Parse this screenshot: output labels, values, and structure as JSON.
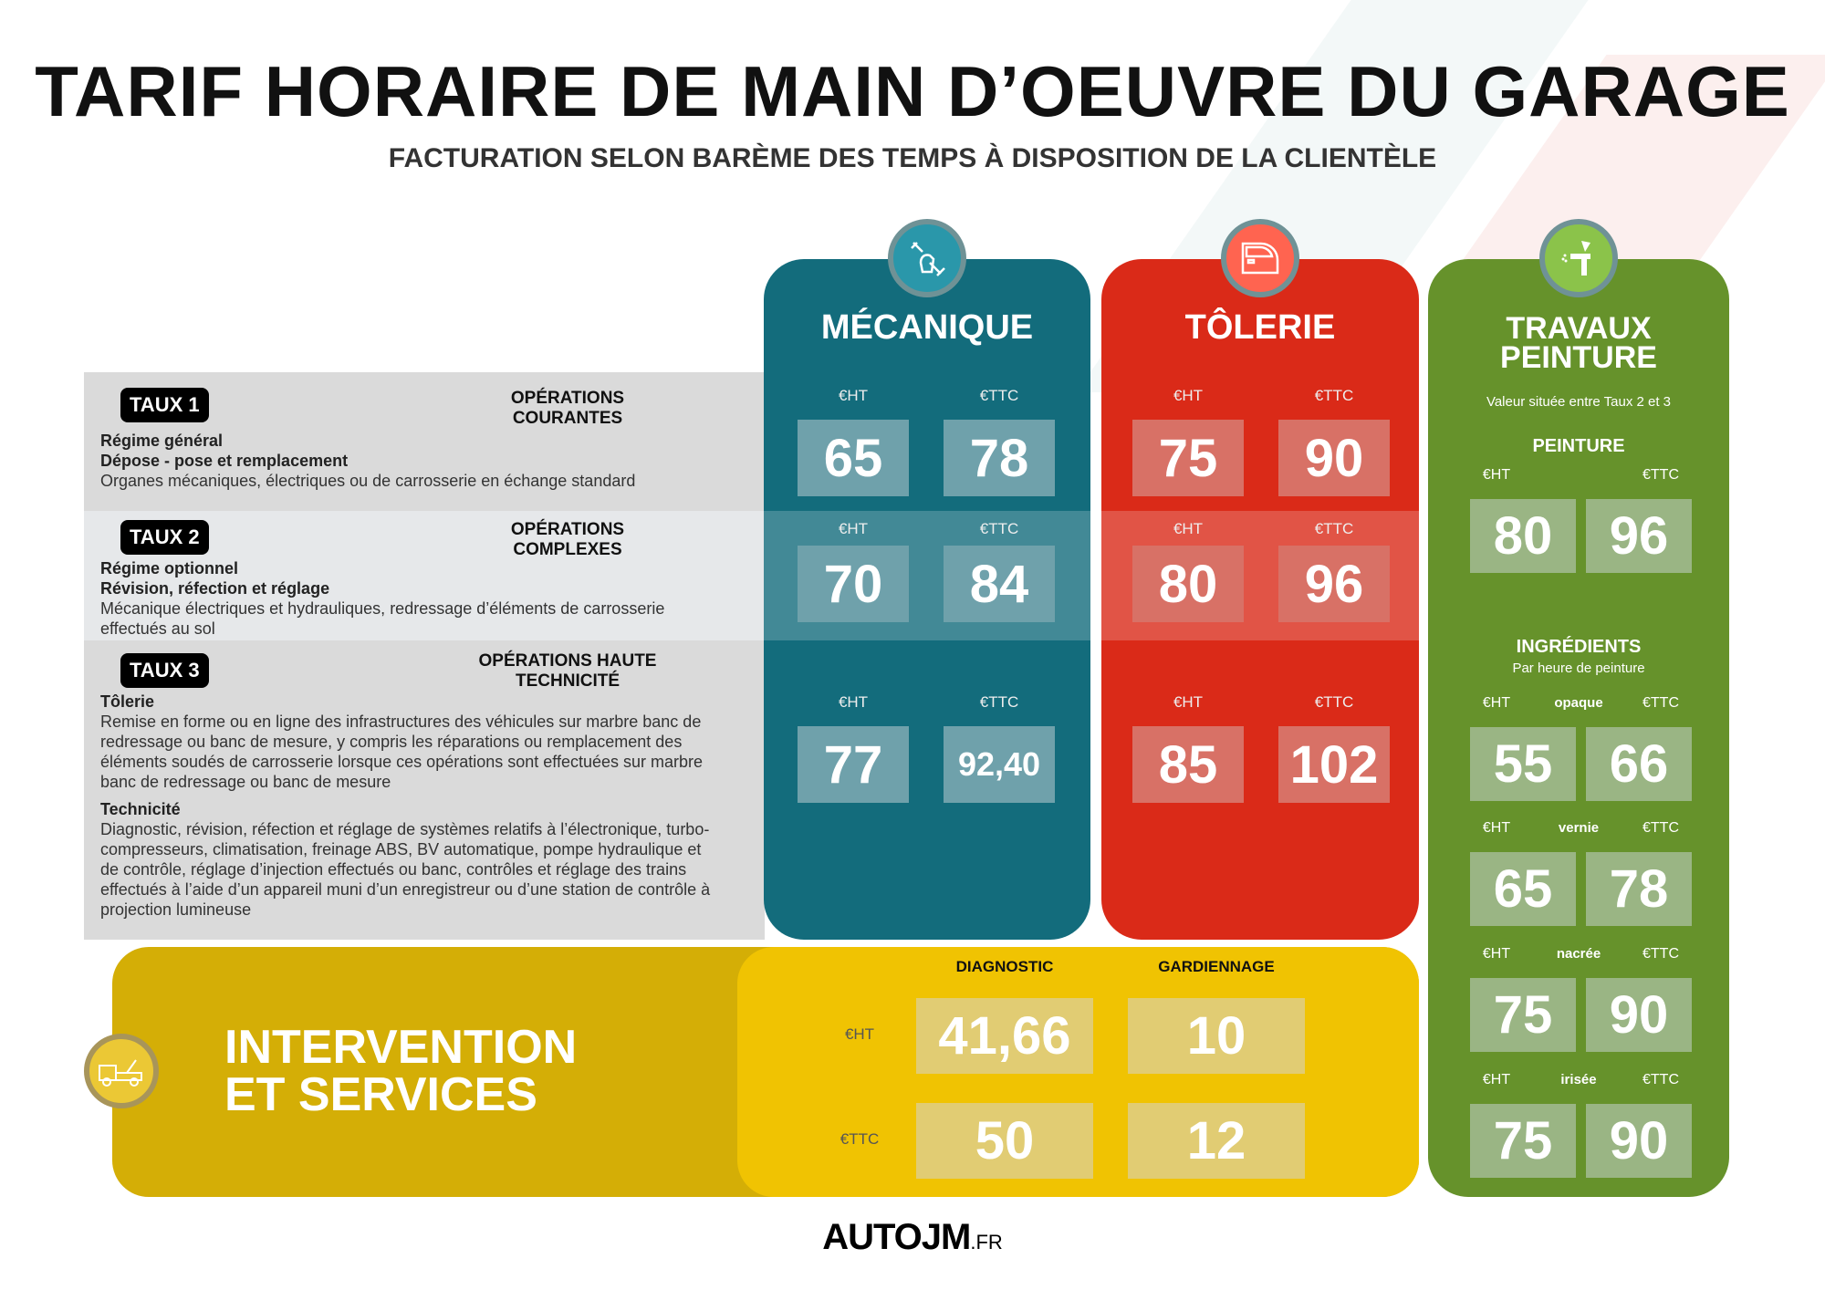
{
  "title": "TARIF HORAIRE DE MAIN D’OEUVRE DU GARAGE",
  "subtitle": "FACTURATION SELON BARÈME DES TEMPS À DISPOSITION DE LA CLIENTÈLE",
  "rates": [
    {
      "badge": "TAUX 1",
      "ops": "OPÉRATIONS COURANTES",
      "lines_bold": [
        "Régime général",
        "Dépose - pose et remplacement"
      ],
      "text": "Organes mécaniques, électriques ou de carrosserie en échange standard"
    },
    {
      "badge": "TAUX 2",
      "ops": "OPÉRATIONS COMPLEXES",
      "lines_bold": [
        "Régime optionnel",
        "Révision, réfection et réglage"
      ],
      "text": "Mécanique électriques et hydrauliques, redressage d’éléments de carrosserie effectués au sol"
    },
    {
      "badge": "TAUX 3",
      "ops": "OPÉRATIONS HAUTE TECHNICITÉ",
      "lines_bold": [
        "Tôlerie"
      ],
      "text": "Remise en forme ou en ligne des infrastructures des véhicules sur marbre banc de redressage ou banc de mesure, y compris les réparations ou remplacement des éléments soudés de carrosserie lorsque ces opérations sont effectuées sur marbre banc de redressage ou banc de mesure",
      "heading2": "Technicité",
      "text2": "Diagnostic, révision, réfection et réglage de systèmes relatifs à l’électronique, turbo-compresseurs, climatisation, freinage ABS, BV automatique, pompe hydraulique et de contrôle, réglage d’injection effectués ou banc, contrôles et réglage des trains effectués à l’aide d’un appareil muni d’un enregistreur ou d’une station de contrôle à projection lumineuse"
    }
  ],
  "labels": {
    "ht": "€HT",
    "ttc": "€TTC"
  },
  "mecanique": {
    "title": "MÉCANIQUE",
    "icon": "wrench-hand-icon",
    "color": "#136c7c",
    "values": [
      [
        "65",
        "78"
      ],
      [
        "70",
        "84"
      ],
      [
        "77",
        "92,40"
      ]
    ]
  },
  "tolerie": {
    "title": "TÔLERIE",
    "icon": "car-door-icon",
    "color": "#da2a18",
    "values": [
      [
        "75",
        "90"
      ],
      [
        "80",
        "96"
      ],
      [
        "85",
        "102"
      ]
    ]
  },
  "peinture": {
    "title": "TRAVAUX PEINTURE",
    "icon": "spray-gun-icon",
    "color": "#66922b",
    "note": "Valeur située entre Taux 2 et 3",
    "peinture_label": "PEINTURE",
    "peinture": [
      "80",
      "96"
    ],
    "ingredients_label": "INGRÉDIENTS",
    "ingredients_note": "Par heure de peinture",
    "ingredients": [
      {
        "name": "opaque",
        "ht": "55",
        "ttc": "66"
      },
      {
        "name": "vernie",
        "ht": "65",
        "ttc": "78"
      },
      {
        "name": "nacrée",
        "ht": "75",
        "ttc": "90"
      },
      {
        "name": "irisée",
        "ht": "75",
        "ttc": "90"
      }
    ]
  },
  "services": {
    "title1": "INTERVENTION",
    "title2": "ET SERVICES",
    "icon": "tow-truck-icon",
    "col1": "DIAGNOSTIC",
    "col2": "GARDIENNAGE",
    "ht": [
      "41,66",
      "10"
    ],
    "ttc": [
      "50",
      "12"
    ]
  },
  "logo": {
    "main": "AUTOJM",
    "suffix": ".FR"
  }
}
